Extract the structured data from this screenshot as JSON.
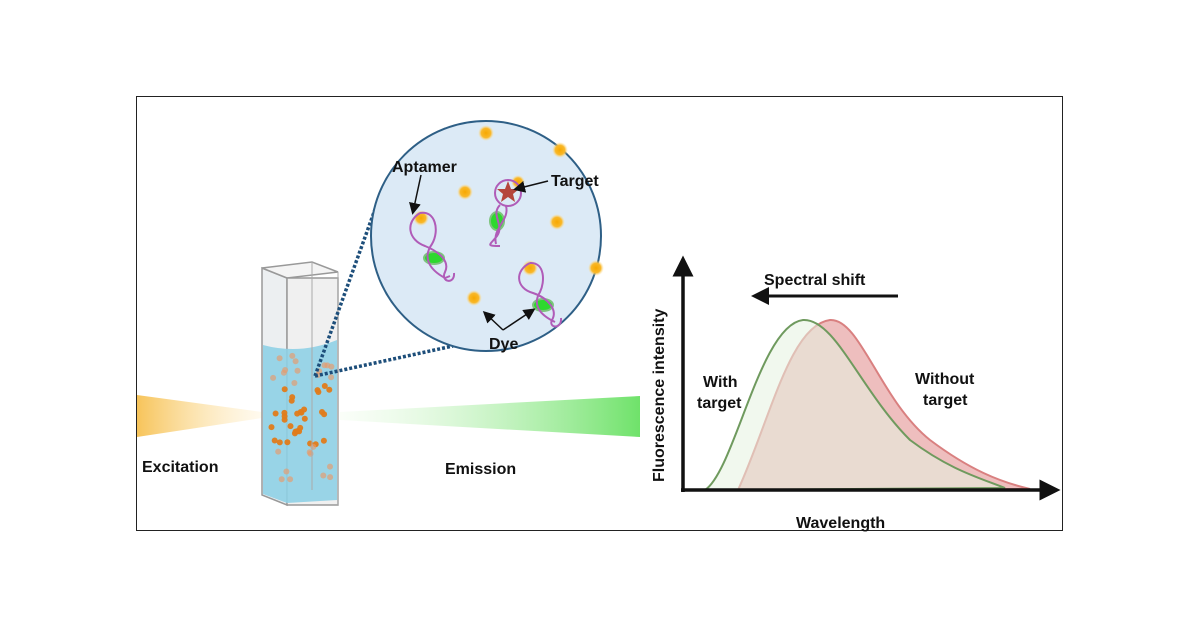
{
  "labels": {
    "excitation": "Excitation",
    "emission": "Emission",
    "aptamer": "Aptamer",
    "target": "Target",
    "dye": "Dye",
    "spectral_shift": "Spectral shift",
    "y_axis": "Fluorescence intensity",
    "x_axis": "Wavelength",
    "with_target_1": "With",
    "with_target_2": "target",
    "without_target_1": "Without",
    "without_target_2": "target"
  },
  "colors": {
    "aptamer": "#b05cb8",
    "dye": "#f5a623",
    "bound_dye": "#33cc33",
    "target": "#b5463c",
    "with_target_curve": "#6f9a5e",
    "without_target_curve": "#d98080",
    "solution": "#8fd0e6",
    "zoom_circle": "#dceaf6"
  }
}
